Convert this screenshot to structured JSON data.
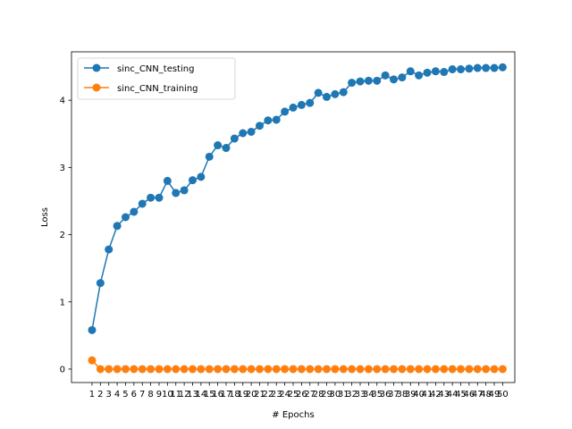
{
  "chart_data": {
    "type": "line",
    "title": "",
    "xlabel": "# Epochs",
    "ylabel": "Loss",
    "xlim": [
      -1.45,
      51.45
    ],
    "ylim": [
      -0.2,
      4.72
    ],
    "grid": false,
    "legend_position": "top-left",
    "x": [
      1,
      2,
      3,
      4,
      5,
      6,
      7,
      8,
      9,
      10,
      11,
      12,
      13,
      14,
      15,
      16,
      17,
      18,
      19,
      20,
      21,
      22,
      23,
      24,
      25,
      26,
      27,
      28,
      29,
      30,
      31,
      32,
      33,
      34,
      35,
      36,
      37,
      38,
      39,
      40,
      41,
      42,
      43,
      44,
      45,
      46,
      47,
      48,
      49,
      50
    ],
    "x_tick_labels": [
      "1",
      "2",
      "3",
      "4",
      "5",
      "6",
      "7",
      "8",
      "9",
      "10",
      "11",
      "12",
      "13",
      "14",
      "15",
      "16",
      "17",
      "18",
      "19",
      "20",
      "21",
      "22",
      "23",
      "24",
      "25",
      "26",
      "27",
      "28",
      "29",
      "30",
      "31",
      "32",
      "33",
      "34",
      "35",
      "36",
      "37",
      "38",
      "39",
      "40",
      "41",
      "42",
      "43",
      "44",
      "45",
      "46",
      "47",
      "48",
      "49",
      "50"
    ],
    "y_ticks": [
      0,
      1,
      2,
      3,
      4
    ],
    "y_tick_labels": [
      "0",
      "1",
      "2",
      "3",
      "4"
    ],
    "series": [
      {
        "name": "sinc_CNN_testing",
        "color": "#1f77b4",
        "values": [
          0.58,
          1.28,
          1.78,
          2.13,
          2.26,
          2.34,
          2.46,
          2.55,
          2.55,
          2.8,
          2.62,
          2.66,
          2.81,
          2.86,
          3.16,
          3.33,
          3.29,
          3.43,
          3.51,
          3.53,
          3.62,
          3.7,
          3.71,
          3.83,
          3.89,
          3.93,
          3.96,
          4.11,
          4.05,
          4.09,
          4.12,
          4.26,
          4.28,
          4.29,
          4.29,
          4.37,
          4.31,
          4.34,
          4.43,
          4.37,
          4.41,
          4.43,
          4.42,
          4.46,
          4.46,
          4.47,
          4.48,
          4.48,
          4.48,
          4.49
        ]
      },
      {
        "name": "sinc_CNN_training",
        "color": "#ff7f0e",
        "values": [
          0.13,
          0.0,
          0.0,
          0.0,
          0.0,
          0.0,
          0.0,
          0.0,
          0.0,
          0.0,
          0.0,
          0.0,
          0.0,
          0.0,
          0.0,
          0.0,
          0.0,
          0.0,
          0.0,
          0.0,
          0.0,
          0.0,
          0.0,
          0.0,
          0.0,
          0.0,
          0.0,
          0.0,
          0.0,
          0.0,
          0.0,
          0.0,
          0.0,
          0.0,
          0.0,
          0.0,
          0.0,
          0.0,
          0.0,
          0.0,
          0.0,
          0.0,
          0.0,
          0.0,
          0.0,
          0.0,
          0.0,
          0.0,
          0.0,
          0.0
        ]
      }
    ]
  }
}
